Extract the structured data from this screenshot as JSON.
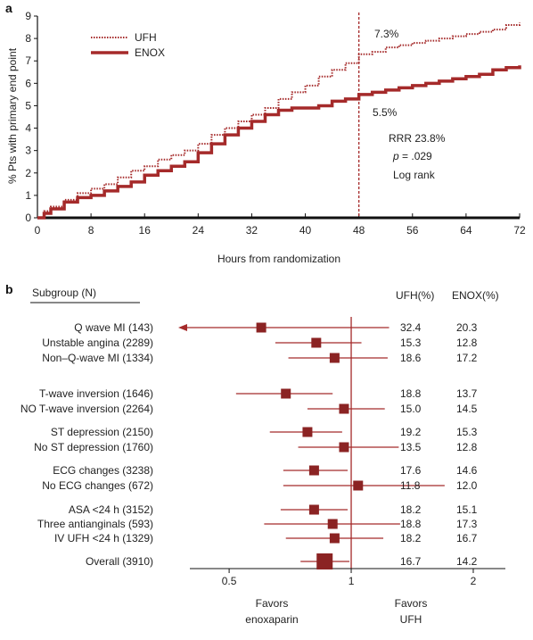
{
  "colors": {
    "accent": "#a52a2a",
    "axis": "#111111",
    "text": "#222222"
  },
  "chart_data": [
    {
      "panel": "a",
      "type": "line",
      "xlabel": "Hours from randomization",
      "ylabel": "% Pts with primary end point",
      "xlim": [
        0,
        72
      ],
      "ylim": [
        0,
        9
      ],
      "xticks": [
        0,
        8,
        16,
        24,
        32,
        40,
        48,
        56,
        64,
        72
      ],
      "yticks": [
        0,
        1,
        2,
        3,
        4,
        5,
        6,
        7,
        8,
        9
      ],
      "grid": false,
      "legend_position": "top-left",
      "series": [
        {
          "name": "UFH",
          "style": "dotted",
          "x": [
            0,
            1,
            2,
            4,
            6,
            8,
            10,
            12,
            14,
            16,
            18,
            20,
            22,
            24,
            26,
            28,
            30,
            32,
            34,
            36,
            38,
            40,
            42,
            44,
            46,
            48,
            50,
            52,
            54,
            56,
            58,
            60,
            62,
            64,
            66,
            68,
            70,
            72
          ],
          "y": [
            0,
            0.3,
            0.5,
            0.8,
            1.1,
            1.3,
            1.5,
            1.8,
            2.1,
            2.3,
            2.6,
            2.8,
            3.0,
            3.3,
            3.7,
            4.0,
            4.3,
            4.6,
            4.9,
            5.3,
            5.6,
            5.9,
            6.3,
            6.6,
            6.9,
            7.3,
            7.4,
            7.6,
            7.7,
            7.8,
            7.9,
            8.0,
            8.1,
            8.2,
            8.3,
            8.4,
            8.6,
            8.7
          ]
        },
        {
          "name": "ENOX",
          "style": "solid",
          "x": [
            0,
            1,
            2,
            4,
            6,
            8,
            10,
            12,
            14,
            16,
            18,
            20,
            22,
            24,
            26,
            28,
            30,
            32,
            34,
            36,
            38,
            40,
            42,
            44,
            46,
            48,
            50,
            52,
            54,
            56,
            58,
            60,
            62,
            64,
            66,
            68,
            70,
            72
          ],
          "y": [
            0,
            0.2,
            0.4,
            0.7,
            0.9,
            1.0,
            1.2,
            1.4,
            1.6,
            1.9,
            2.1,
            2.3,
            2.5,
            2.9,
            3.3,
            3.7,
            4.0,
            4.3,
            4.6,
            4.8,
            4.9,
            4.9,
            5.0,
            5.2,
            5.3,
            5.5,
            5.6,
            5.7,
            5.8,
            5.9,
            6.0,
            6.1,
            6.2,
            6.3,
            6.4,
            6.6,
            6.7,
            6.8
          ]
        }
      ],
      "annotations": {
        "vline_x": 48,
        "ufh_label": "7.3%",
        "enox_label": "5.5%",
        "rrr": "RRR 23.8%",
        "p_label": "p",
        "p_value": " = .029",
        "logrank": "Log rank"
      }
    },
    {
      "panel": "b",
      "type": "forest",
      "xscale": "log",
      "xlim": [
        0.4,
        2.4
      ],
      "xticks": [
        0.5,
        1,
        2
      ],
      "xtick_labels": [
        "0.5",
        "1",
        "2"
      ],
      "reference_line": 1,
      "headers": {
        "subgroup": "Subgroup (N)",
        "ufh": "UFH(%)",
        "enox": "ENOX(%)"
      },
      "favors_left": [
        "Favors",
        "enoxaparin"
      ],
      "favors_right": [
        "Favors",
        "UFH"
      ],
      "rows": [
        {
          "label": "Q wave MI (143)",
          "or": 0.6,
          "lo": 0.4,
          "hi": 1.24,
          "ufh": "32.4",
          "enox": "20.3",
          "arrow_left": true
        },
        {
          "label": "Unstable angina (2289)",
          "or": 0.82,
          "lo": 0.65,
          "hi": 1.06,
          "ufh": "15.3",
          "enox": "12.8"
        },
        {
          "label": "Non–Q-wave MI (1334)",
          "or": 0.91,
          "lo": 0.7,
          "hi": 1.23,
          "ufh": "18.6",
          "enox": "17.2"
        },
        {
          "label": "T-wave inversion (1646)",
          "or": 0.69,
          "lo": 0.52,
          "hi": 0.9,
          "ufh": "18.8",
          "enox": "13.7"
        },
        {
          "label": "NO T-wave inversion (2264)",
          "or": 0.96,
          "lo": 0.78,
          "hi": 1.21,
          "ufh": "15.0",
          "enox": "14.5"
        },
        {
          "label": "ST depression (2150)",
          "or": 0.78,
          "lo": 0.63,
          "hi": 0.95,
          "ufh": "19.2",
          "enox": "15.3"
        },
        {
          "label": "No ST depression (1760)",
          "or": 0.96,
          "lo": 0.74,
          "hi": 1.31,
          "ufh": "13.5",
          "enox": "12.8"
        },
        {
          "label": "ECG changes (3238)",
          "or": 0.81,
          "lo": 0.68,
          "hi": 0.98,
          "ufh": "17.6",
          "enox": "14.6"
        },
        {
          "label": "No ECG changes (672)",
          "or": 1.04,
          "lo": 0.68,
          "hi": 1.7,
          "ufh": "11.8",
          "enox": "12.0"
        },
        {
          "label": "ASA <24 h (3152)",
          "or": 0.81,
          "lo": 0.67,
          "hi": 0.98,
          "ufh": "18.2",
          "enox": "15.1"
        },
        {
          "label": "Three antianginals (593)",
          "or": 0.9,
          "lo": 0.61,
          "hi": 1.32,
          "ufh": "18.8",
          "enox": "17.3"
        },
        {
          "label": "IV UFH <24 h (1329)",
          "or": 0.91,
          "lo": 0.69,
          "hi": 1.2,
          "ufh": "18.2",
          "enox": "16.7"
        },
        {
          "label": "Overall (3910)",
          "or": 0.86,
          "lo": 0.75,
          "hi": 0.99,
          "ufh": "16.7",
          "enox": "14.2",
          "overall": true
        }
      ]
    }
  ]
}
